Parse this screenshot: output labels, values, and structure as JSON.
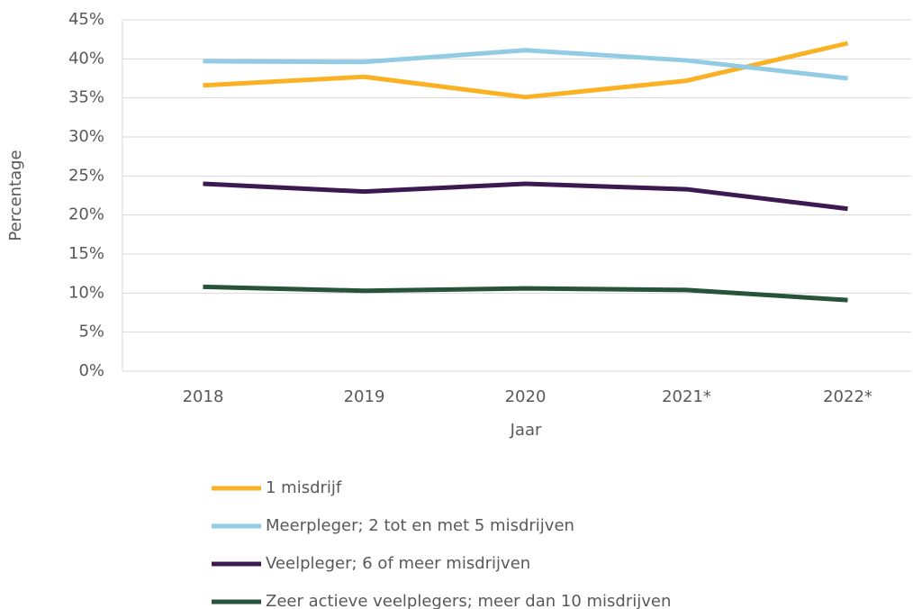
{
  "chart_data": {
    "type": "line",
    "x_label": "Jaar",
    "y_label": "Percentage",
    "categories": [
      "2018",
      "2019",
      "2020",
      "2021*",
      "2022*"
    ],
    "series": [
      {
        "name": "1 misdrijf",
        "color": "#fbb124",
        "values": [
          36.6,
          37.7,
          35.1,
          37.2,
          42.0
        ]
      },
      {
        "name": "Meerpleger; 2 tot en met 5 misdrijven",
        "color": "#92cbe4",
        "values": [
          39.7,
          39.6,
          41.1,
          39.8,
          37.5
        ]
      },
      {
        "name": "Veelpleger; 6 of meer misdrijven",
        "color": "#3d1952",
        "values": [
          24.0,
          23.0,
          24.0,
          23.3,
          20.8
        ]
      },
      {
        "name": "Zeer actieve veelplegers; meer dan 10 misdrijven",
        "color": "#275338",
        "values": [
          10.8,
          10.3,
          10.6,
          10.4,
          9.1
        ]
      }
    ],
    "ylim": [
      0,
      45
    ],
    "yticks": [
      {
        "value": 0,
        "label": "0%"
      },
      {
        "value": 5,
        "label": "5%"
      },
      {
        "value": 10,
        "label": "10%"
      },
      {
        "value": 15,
        "label": "15%"
      },
      {
        "value": 20,
        "label": "20%"
      },
      {
        "value": 25,
        "label": "25%"
      },
      {
        "value": 30,
        "label": "30%"
      },
      {
        "value": 35,
        "label": "35%"
      },
      {
        "value": 40,
        "label": "40%"
      },
      {
        "value": 45,
        "label": "45%"
      }
    ],
    "grid": true,
    "legend": "bottom"
  }
}
